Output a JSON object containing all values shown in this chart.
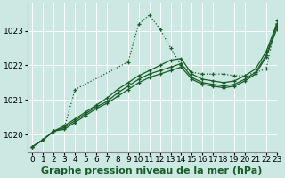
{
  "background_color": "#cbe8e3",
  "plot_bg_color": "#cbe8e3",
  "grid_color": "#ffffff",
  "line_color": "#1a5c28",
  "ylim": [
    1019.5,
    1023.8
  ],
  "xlim": [
    -0.5,
    23
  ],
  "yticks": [
    1020,
    1021,
    1022,
    1023
  ],
  "xticks": [
    0,
    1,
    2,
    3,
    4,
    5,
    6,
    7,
    8,
    9,
    10,
    11,
    12,
    13,
    14,
    15,
    16,
    17,
    18,
    19,
    20,
    21,
    22,
    23
  ],
  "xlabel": "Graphe pression niveau de la mer (hPa)",
  "series": [
    {
      "x": [
        0,
        1,
        2,
        3,
        4,
        5,
        6,
        7,
        8,
        9,
        10,
        11,
        12,
        13,
        14,
        15,
        16,
        17,
        18,
        19,
        20,
        21,
        22,
        23
      ],
      "y": [
        1019.65,
        1019.85,
        1020.1,
        1020.25,
        1020.45,
        1020.65,
        1020.85,
        1021.05,
        1021.3,
        1021.5,
        1021.7,
        1021.85,
        1022.0,
        1022.15,
        1022.2,
        1021.75,
        1021.6,
        1021.55,
        1021.5,
        1021.55,
        1021.7,
        1021.9,
        1022.4,
        1023.2
      ],
      "linestyle": "solid",
      "marker": true
    },
    {
      "x": [
        0,
        1,
        2,
        3,
        4,
        5,
        6,
        7,
        8,
        9,
        10,
        11,
        12,
        13,
        14,
        15,
        16,
        17,
        18,
        19,
        20,
        21,
        22,
        23
      ],
      "y": [
        1019.65,
        1019.85,
        1020.1,
        1020.2,
        1020.4,
        1020.6,
        1020.8,
        1020.95,
        1021.2,
        1021.4,
        1021.6,
        1021.75,
        1021.85,
        1021.95,
        1022.05,
        1021.65,
        1021.5,
        1021.45,
        1021.4,
        1021.45,
        1021.6,
        1021.8,
        1022.3,
        1023.15
      ],
      "linestyle": "solid",
      "marker": true
    },
    {
      "x": [
        0,
        1,
        2,
        3,
        4,
        5,
        6,
        7,
        8,
        9,
        10,
        11,
        12,
        13,
        14,
        15,
        16,
        17,
        18,
        19,
        20,
        21,
        22,
        23
      ],
      "y": [
        1019.65,
        1019.85,
        1020.1,
        1020.15,
        1020.35,
        1020.55,
        1020.75,
        1020.9,
        1021.1,
        1021.3,
        1021.5,
        1021.65,
        1021.75,
        1021.85,
        1021.95,
        1021.6,
        1021.45,
        1021.4,
        1021.35,
        1021.4,
        1021.55,
        1021.75,
        1022.25,
        1023.05
      ],
      "linestyle": "solid",
      "marker": true
    },
    {
      "x": [
        0,
        2,
        3,
        4,
        9,
        10,
        11,
        12,
        13,
        14,
        15,
        16,
        17,
        18,
        19,
        20,
        21,
        22,
        23
      ],
      "y": [
        1019.65,
        1020.1,
        1020.2,
        1021.3,
        1022.1,
        1023.2,
        1023.45,
        1023.05,
        1022.5,
        1022.0,
        1021.8,
        1021.75,
        1021.75,
        1021.75,
        1021.7,
        1021.7,
        1021.8,
        1021.9,
        1023.3
      ],
      "linestyle": "dotted",
      "marker": true
    }
  ],
  "title_fontsize": 8,
  "tick_fontsize": 6.5
}
